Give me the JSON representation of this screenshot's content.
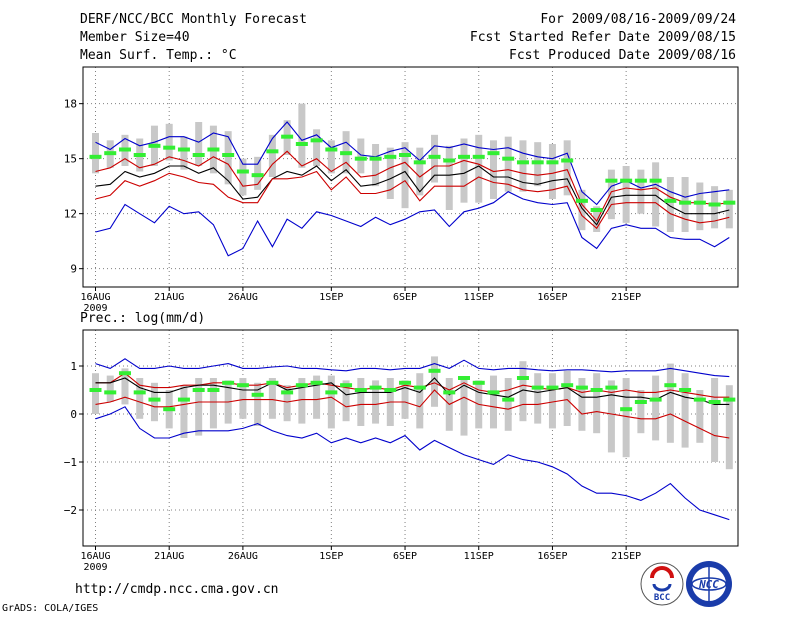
{
  "header": {
    "title": "DERF/NCC/BCC Monthly Forecast",
    "member_size": "Member Size=40",
    "variable": "Mean Surf. Temp.: °C",
    "period": "For 2009/08/16-2009/09/24",
    "start_date": "Fcst Started Refer Date 2009/08/15",
    "produced_date": "Fcst Produced Date 2009/08/16"
  },
  "footer": {
    "url": "http://cmdp.ncc.cma.gov.cn",
    "credit": "GrADS: COLA/IGES",
    "logo_bcc_text": "BCC",
    "logo_ncc_text": "NCC"
  },
  "colors": {
    "envelope": "#0000cc",
    "sigma": "#cc0000",
    "mean": "#000000",
    "bar": "#c8c8c8",
    "obs": "#33ee33",
    "grid": "#808080"
  },
  "chart_data": [
    {
      "type": "line",
      "title": "Mean Surf. Temp.: °C",
      "x_start": "2009-08-16",
      "x_ticks": [
        "16AUG",
        "21AUG",
        "26AUG",
        "1SEP",
        "6SEP",
        "11SEP",
        "16SEP",
        "21SEP"
      ],
      "x_tick_year": "2009",
      "x_tick_days": [
        0,
        5,
        10,
        16,
        21,
        26,
        31,
        36
      ],
      "ylim": [
        8,
        20
      ],
      "yticks": [
        9,
        12,
        15,
        18
      ],
      "ytick_labels": [
        "9",
        "12",
        "15",
        "18"
      ],
      "series": [
        {
          "name": "max",
          "role": "envelope",
          "values": [
            15.9,
            15.5,
            16.1,
            15.7,
            15.9,
            16.2,
            16.2,
            15.9,
            16.4,
            16.2,
            14.7,
            14.7,
            16.1,
            17.0,
            16.0,
            16.3,
            15.6,
            15.9,
            15.2,
            15.1,
            15.4,
            15.6,
            14.9,
            15.7,
            15.6,
            15.8,
            15.6,
            15.5,
            15.6,
            15.3,
            15.1,
            15.0,
            15.3,
            13.2,
            12.5,
            13.5,
            13.8,
            13.4,
            13.6,
            13.2,
            12.9,
            13.1,
            13.2,
            13.3
          ]
        },
        {
          "name": "mean+sd",
          "role": "sigma",
          "values": [
            14.3,
            14.5,
            15.0,
            14.5,
            14.7,
            15.1,
            14.9,
            14.6,
            15.1,
            14.7,
            13.5,
            13.6,
            14.7,
            15.4,
            14.6,
            15.0,
            14.3,
            14.8,
            14.0,
            14.1,
            14.5,
            14.8,
            14.0,
            14.6,
            14.6,
            14.9,
            14.7,
            14.3,
            14.4,
            14.2,
            14.1,
            14.2,
            14.4,
            12.5,
            11.6,
            13.2,
            13.4,
            13.3,
            13.4,
            12.9,
            12.6,
            12.6,
            12.5,
            12.6
          ]
        },
        {
          "name": "mean",
          "role": "mean",
          "values": [
            13.5,
            13.6,
            14.3,
            14.0,
            14.2,
            14.6,
            14.6,
            14.2,
            14.5,
            13.8,
            12.8,
            12.9,
            13.9,
            14.3,
            14.1,
            14.6,
            13.8,
            14.4,
            13.5,
            13.6,
            13.9,
            14.3,
            13.2,
            14.1,
            14.1,
            14.2,
            14.6,
            14.0,
            14.0,
            13.7,
            13.6,
            13.8,
            13.9,
            12.3,
            11.4,
            12.9,
            13.0,
            13.0,
            13.0,
            12.4,
            12.0,
            12.0,
            12.0,
            12.2
          ]
        },
        {
          "name": "mean-sd",
          "role": "sigma",
          "values": [
            12.8,
            13.0,
            13.8,
            13.5,
            13.8,
            14.2,
            14.0,
            13.7,
            13.6,
            12.9,
            12.6,
            12.6,
            13.9,
            13.9,
            14.0,
            14.3,
            13.3,
            14.0,
            13.1,
            13.1,
            13.3,
            13.8,
            12.7,
            13.5,
            13.5,
            13.5,
            14.0,
            13.7,
            13.6,
            13.3,
            13.2,
            13.3,
            13.5,
            11.9,
            11.2,
            12.5,
            12.6,
            12.6,
            12.6,
            12.0,
            11.7,
            11.5,
            11.6,
            11.8
          ]
        },
        {
          "name": "min",
          "role": "envelope",
          "values": [
            11.0,
            11.2,
            12.5,
            12.0,
            11.5,
            12.4,
            12.0,
            12.1,
            11.4,
            9.7,
            10.1,
            11.6,
            10.2,
            11.7,
            11.2,
            12.1,
            11.9,
            11.6,
            11.3,
            11.8,
            11.4,
            11.7,
            12.1,
            12.2,
            11.3,
            12.1,
            12.3,
            12.6,
            13.2,
            12.8,
            12.6,
            12.5,
            12.6,
            10.7,
            10.1,
            11.2,
            11.4,
            11.2,
            11.2,
            10.7,
            10.6,
            10.6,
            10.2,
            10.7
          ]
        },
        {
          "name": "obs",
          "role": "observed",
          "values": [
            15.1,
            15.3,
            15.5,
            15.2,
            15.7,
            15.6,
            15.5,
            15.2,
            15.5,
            15.2,
            14.3,
            14.1,
            15.4,
            16.2,
            15.8,
            16.0,
            15.5,
            15.3,
            15.0,
            15.0,
            15.1,
            15.2,
            14.8,
            15.1,
            14.9,
            15.1,
            15.1,
            15.3,
            15.0,
            14.8,
            14.8,
            14.8,
            14.9,
            12.7,
            12.2,
            13.8,
            13.8,
            13.8,
            13.8,
            12.7,
            12.6,
            12.6,
            12.5,
            12.6
          ]
        }
      ],
      "bars": [
        {
          "lo": 14.2,
          "hi": 16.4
        },
        {
          "lo": 14.5,
          "hi": 16.0
        },
        {
          "lo": 14.6,
          "hi": 16.3
        },
        {
          "lo": 14.3,
          "hi": 16.1
        },
        {
          "lo": 14.6,
          "hi": 16.8
        },
        {
          "lo": 14.9,
          "hi": 16.9
        },
        {
          "lo": 14.4,
          "hi": 16.2
        },
        {
          "lo": 14.6,
          "hi": 17.0
        },
        {
          "lo": 14.2,
          "hi": 16.8
        },
        {
          "lo": 13.6,
          "hi": 16.5
        },
        {
          "lo": 13.0,
          "hi": 15.0
        },
        {
          "lo": 13.3,
          "hi": 15.1
        },
        {
          "lo": 14.0,
          "hi": 16.3
        },
        {
          "lo": 15.2,
          "hi": 17.1
        },
        {
          "lo": 14.5,
          "hi": 18.0
        },
        {
          "lo": 14.6,
          "hi": 16.6
        },
        {
          "lo": 14.2,
          "hi": 16.0
        },
        {
          "lo": 14.2,
          "hi": 16.5
        },
        {
          "lo": 14.2,
          "hi": 16.1
        },
        {
          "lo": 13.5,
          "hi": 15.8
        },
        {
          "lo": 12.8,
          "hi": 15.6
        },
        {
          "lo": 12.3,
          "hi": 15.9
        },
        {
          "lo": 13.0,
          "hi": 15.6
        },
        {
          "lo": 13.7,
          "hi": 16.3
        },
        {
          "lo": 12.2,
          "hi": 15.7
        },
        {
          "lo": 12.6,
          "hi": 16.1
        },
        {
          "lo": 12.6,
          "hi": 16.3
        },
        {
          "lo": 12.8,
          "hi": 16.0
        },
        {
          "lo": 13.2,
          "hi": 16.2
        },
        {
          "lo": 13.2,
          "hi": 16.0
        },
        {
          "lo": 13.5,
          "hi": 15.9
        },
        {
          "lo": 12.8,
          "hi": 15.8
        },
        {
          "lo": 13.0,
          "hi": 16.0
        },
        {
          "lo": 11.1,
          "hi": 13.3
        },
        {
          "lo": 11.0,
          "hi": 12.4
        },
        {
          "lo": 11.7,
          "hi": 14.4
        },
        {
          "lo": 11.5,
          "hi": 14.6
        },
        {
          "lo": 12.0,
          "hi": 14.4
        },
        {
          "lo": 11.3,
          "hi": 14.8
        },
        {
          "lo": 11.0,
          "hi": 14.0
        },
        {
          "lo": 11.0,
          "hi": 14.0
        },
        {
          "lo": 11.1,
          "hi": 13.7
        },
        {
          "lo": 11.2,
          "hi": 13.5
        },
        {
          "lo": 11.2,
          "hi": 13.3
        }
      ]
    },
    {
      "type": "line",
      "title": "Prec.: log(mm/d)",
      "x_start": "2009-08-16",
      "x_ticks": [
        "16AUG",
        "21AUG",
        "26AUG",
        "1SEP",
        "6SEP",
        "11SEP",
        "16SEP",
        "21SEP"
      ],
      "x_tick_year": "2009",
      "x_tick_days": [
        0,
        5,
        10,
        16,
        21,
        26,
        31,
        36
      ],
      "ylim": [
        -2.75,
        1.75
      ],
      "yticks": [
        -2,
        -1,
        0,
        1
      ],
      "ytick_labels": [
        "−2",
        "−1",
        "0",
        "1"
      ],
      "series": [
        {
          "name": "max",
          "role": "envelope",
          "values": [
            1.05,
            0.95,
            1.15,
            0.95,
            0.95,
            1.0,
            0.95,
            0.95,
            1.0,
            1.05,
            0.95,
            0.95,
            0.98,
            1.0,
            0.95,
            0.95,
            0.92,
            0.9,
            0.95,
            0.95,
            0.92,
            0.95,
            0.95,
            1.05,
            0.95,
            1.12,
            0.95,
            0.92,
            0.95,
            0.95,
            0.92,
            0.9,
            0.92,
            0.92,
            0.9,
            0.88,
            0.9,
            0.9,
            0.9,
            0.95,
            0.9,
            0.85,
            0.8,
            0.78
          ]
        },
        {
          "name": "mean+sd",
          "role": "sigma",
          "values": [
            0.65,
            0.65,
            0.85,
            0.6,
            0.55,
            0.55,
            0.6,
            0.6,
            0.65,
            0.65,
            0.6,
            0.6,
            0.65,
            0.55,
            0.6,
            0.65,
            0.6,
            0.55,
            0.5,
            0.55,
            0.5,
            0.6,
            0.55,
            0.65,
            0.5,
            0.65,
            0.5,
            0.45,
            0.5,
            0.6,
            0.55,
            0.5,
            0.55,
            0.45,
            0.5,
            0.45,
            0.5,
            0.45,
            0.45,
            0.5,
            0.45,
            0.4,
            0.35,
            0.35
          ]
        },
        {
          "name": "mean",
          "role": "mean",
          "values": [
            0.65,
            0.65,
            0.75,
            0.55,
            0.45,
            0.45,
            0.55,
            0.6,
            0.6,
            0.55,
            0.5,
            0.5,
            0.65,
            0.5,
            0.55,
            0.6,
            0.65,
            0.4,
            0.45,
            0.45,
            0.45,
            0.55,
            0.45,
            0.75,
            0.4,
            0.6,
            0.45,
            0.4,
            0.35,
            0.5,
            0.45,
            0.5,
            0.55,
            0.35,
            0.35,
            0.4,
            0.35,
            0.35,
            0.3,
            0.45,
            0.35,
            0.3,
            0.2,
            0.2
          ]
        },
        {
          "name": "mean-sd",
          "role": "sigma",
          "values": [
            0.2,
            0.25,
            0.35,
            0.25,
            0.15,
            0.15,
            0.2,
            0.25,
            0.25,
            0.25,
            0.3,
            0.3,
            0.3,
            0.25,
            0.3,
            0.3,
            0.35,
            0.15,
            0.2,
            0.2,
            0.25,
            0.25,
            0.15,
            0.5,
            0.2,
            0.35,
            0.2,
            0.15,
            0.1,
            0.2,
            0.2,
            0.25,
            0.3,
            0.0,
            0.05,
            0.0,
            -0.05,
            -0.1,
            -0.1,
            0.0,
            -0.15,
            -0.3,
            -0.45,
            -0.5
          ]
        },
        {
          "name": "min",
          "role": "envelope",
          "values": [
            -0.1,
            0.0,
            0.15,
            -0.3,
            -0.5,
            -0.5,
            -0.4,
            -0.35,
            -0.35,
            -0.35,
            -0.3,
            -0.2,
            -0.35,
            -0.45,
            -0.5,
            -0.4,
            -0.6,
            -0.5,
            -0.6,
            -0.5,
            -0.6,
            -0.45,
            -0.75,
            -0.55,
            -0.7,
            -0.85,
            -0.95,
            -1.05,
            -0.85,
            -0.95,
            -1.0,
            -1.1,
            -1.25,
            -1.5,
            -1.65,
            -1.65,
            -1.7,
            -1.8,
            -1.65,
            -1.45,
            -1.75,
            -2.0,
            -2.1,
            -2.2
          ]
        },
        {
          "name": "obs",
          "role": "observed",
          "values": [
            0.5,
            0.45,
            0.85,
            0.45,
            0.3,
            0.1,
            0.3,
            0.5,
            0.5,
            0.65,
            0.6,
            0.4,
            0.65,
            0.45,
            0.6,
            0.65,
            0.45,
            0.6,
            0.5,
            0.55,
            0.5,
            0.65,
            0.55,
            0.9,
            0.45,
            0.75,
            0.65,
            0.45,
            0.3,
            0.75,
            0.55,
            0.55,
            0.6,
            0.55,
            0.5,
            0.55,
            0.1,
            0.25,
            0.3,
            0.6,
            0.5,
            0.3,
            0.25,
            0.3
          ]
        }
      ],
      "bars": [
        {
          "lo": 0.0,
          "hi": 0.85
        },
        {
          "lo": 0.25,
          "hi": 0.8
        },
        {
          "lo": 0.2,
          "hi": 0.95
        },
        {
          "lo": -0.1,
          "hi": 0.75
        },
        {
          "lo": -0.15,
          "hi": 0.65
        },
        {
          "lo": -0.3,
          "hi": 0.5
        },
        {
          "lo": -0.5,
          "hi": 0.6
        },
        {
          "lo": -0.45,
          "hi": 0.75
        },
        {
          "lo": -0.3,
          "hi": 0.75
        },
        {
          "lo": -0.2,
          "hi": 0.7
        },
        {
          "lo": -0.1,
          "hi": 0.75
        },
        {
          "lo": -0.25,
          "hi": 0.65
        },
        {
          "lo": -0.1,
          "hi": 0.75
        },
        {
          "lo": -0.15,
          "hi": 0.6
        },
        {
          "lo": -0.2,
          "hi": 0.75
        },
        {
          "lo": -0.1,
          "hi": 0.8
        },
        {
          "lo": -0.3,
          "hi": 0.8
        },
        {
          "lo": -0.15,
          "hi": 0.7
        },
        {
          "lo": -0.25,
          "hi": 0.75
        },
        {
          "lo": -0.2,
          "hi": 0.7
        },
        {
          "lo": -0.25,
          "hi": 0.75
        },
        {
          "lo": -0.1,
          "hi": 0.7
        },
        {
          "lo": -0.3,
          "hi": 0.85
        },
        {
          "lo": 0.15,
          "hi": 1.2
        },
        {
          "lo": -0.35,
          "hi": 0.75
        },
        {
          "lo": -0.45,
          "hi": 0.75
        },
        {
          "lo": -0.3,
          "hi": 0.7
        },
        {
          "lo": -0.3,
          "hi": 0.8
        },
        {
          "lo": -0.35,
          "hi": 0.75
        },
        {
          "lo": -0.15,
          "hi": 1.1
        },
        {
          "lo": -0.2,
          "hi": 0.85
        },
        {
          "lo": -0.3,
          "hi": 0.85
        },
        {
          "lo": -0.25,
          "hi": 0.9
        },
        {
          "lo": -0.35,
          "hi": 0.75
        },
        {
          "lo": -0.4,
          "hi": 0.85
        },
        {
          "lo": -0.8,
          "hi": 0.7
        },
        {
          "lo": -0.9,
          "hi": 0.75
        },
        {
          "lo": -0.4,
          "hi": 0.5
        },
        {
          "lo": -0.55,
          "hi": 0.8
        },
        {
          "lo": -0.6,
          "hi": 1.05
        },
        {
          "lo": -0.7,
          "hi": 0.85
        },
        {
          "lo": -0.6,
          "hi": 0.5
        },
        {
          "lo": -1.0,
          "hi": 0.75
        },
        {
          "lo": -1.15,
          "hi": 0.6
        }
      ]
    }
  ]
}
